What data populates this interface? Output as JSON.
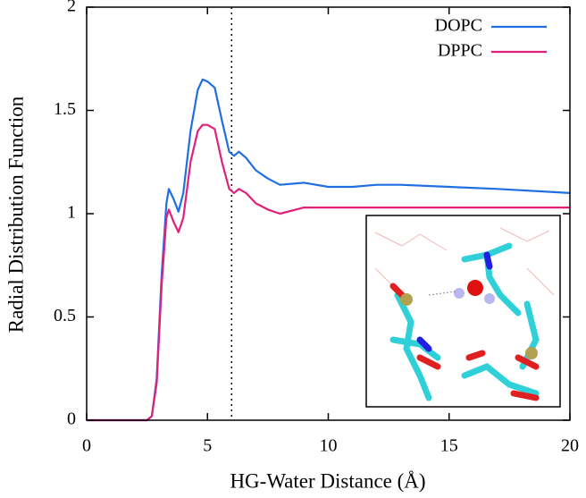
{
  "chart_data": {
    "type": "line",
    "xlabel": "HG-Water Distance (Å)",
    "ylabel": "Radial Distribution Function",
    "x": [
      0,
      1,
      2,
      2.5,
      2.7,
      2.9,
      3.1,
      3.3,
      3.4,
      3.6,
      3.8,
      4.0,
      4.3,
      4.6,
      4.8,
      5.0,
      5.3,
      5.6,
      5.9,
      6.1,
      6.3,
      6.6,
      7,
      7.5,
      8,
      9,
      10,
      11,
      12,
      13,
      15,
      17,
      20
    ],
    "series": [
      {
        "name": "DOPC",
        "color": "#1f6fe0",
        "values": [
          0,
          0,
          0,
          0,
          0.02,
          0.2,
          0.7,
          1.05,
          1.12,
          1.07,
          1.01,
          1.1,
          1.4,
          1.6,
          1.65,
          1.64,
          1.61,
          1.45,
          1.3,
          1.28,
          1.3,
          1.27,
          1.21,
          1.17,
          1.14,
          1.15,
          1.13,
          1.13,
          1.14,
          1.14,
          1.13,
          1.12,
          1.1
        ]
      },
      {
        "name": "DPPC",
        "color": "#e0207a",
        "values": [
          0,
          0,
          0,
          0,
          0.02,
          0.18,
          0.65,
          0.98,
          1.02,
          0.96,
          0.91,
          0.98,
          1.25,
          1.4,
          1.43,
          1.43,
          1.41,
          1.25,
          1.12,
          1.1,
          1.12,
          1.1,
          1.05,
          1.02,
          1.0,
          1.03,
          1.03,
          1.03,
          1.03,
          1.03,
          1.03,
          1.03,
          1.03
        ]
      }
    ],
    "xlim": [
      0,
      20
    ],
    "xticks": [
      0,
      5,
      10,
      15,
      20
    ],
    "ylim": [
      0,
      2
    ],
    "yticks": [
      0,
      0.5,
      1,
      1.5,
      2
    ],
    "vline": 6,
    "legend": "upper right"
  }
}
